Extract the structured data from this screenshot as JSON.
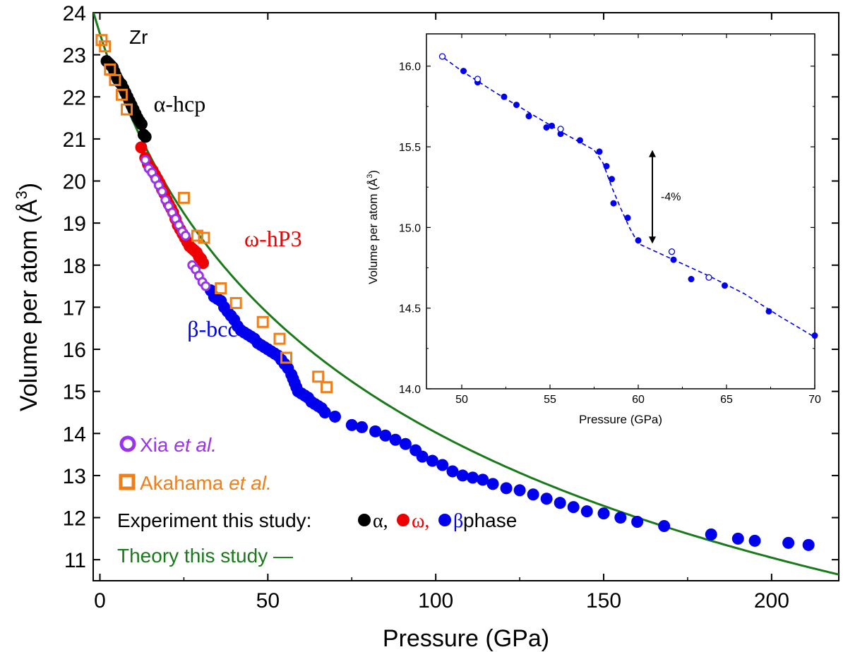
{
  "chart_data": {
    "main": {
      "type": "scatter",
      "xlabel": "Pressure (GPa)",
      "ylabel": "Volume per atom (Å3)",
      "ylabel_main": "Volume per atom (Å",
      "ylabel_sup": "3",
      "ylabel_close": ")",
      "xlim": [
        -2,
        220
      ],
      "ylim": [
        10.5,
        24
      ],
      "xticks": [
        0,
        50,
        100,
        150,
        200
      ],
      "yticks": [
        11,
        12,
        13,
        14,
        15,
        16,
        17,
        18,
        19,
        20,
        21,
        22,
        23,
        24
      ],
      "element_label": "Zr",
      "phase_labels": [
        {
          "text": "α-hcp",
          "color": "#000000",
          "x": 16,
          "y": 21.65
        },
        {
          "text": "ω-hP3",
          "color": "#ee0000",
          "x": 43,
          "y": 18.45
        },
        {
          "text": "β-bcc",
          "color": "#0000ee",
          "x": 26,
          "y": 16.3
        }
      ],
      "legend": {
        "xia_prefix": "Xia ",
        "xia_suffix": "et al.",
        "akahama_prefix": "Akahama ",
        "akahama_suffix": "et al.",
        "experiment_prefix": "Experiment this study:",
        "alpha": "α,",
        "omega": "ω,",
        "beta": "β",
        "phase_word": " phase",
        "theory": "Theory this study —"
      },
      "colors": {
        "alpha": "#000000",
        "omega": "#ee0000",
        "beta": "#0000ee",
        "xia": "#9933ee",
        "akahama": "#ee7f1a",
        "theory": "#1a7a1a"
      },
      "series": [
        {
          "name": "Theory this study",
          "kind": "line",
          "V0": 23.5,
          "K0": 93,
          "K0p": 3.0,
          "x_range": [
            -2,
            220
          ]
        },
        {
          "name": "α",
          "kind": "filled",
          "points": [
            [
              2,
              22.85
            ],
            [
              2.6,
              22.8
            ],
            [
              3.2,
              22.75
            ],
            [
              3.8,
              22.7
            ],
            [
              4.3,
              22.6
            ],
            [
              4.8,
              22.5
            ],
            [
              5.3,
              22.42
            ],
            [
              5.8,
              22.35
            ],
            [
              6.4,
              22.3
            ],
            [
              7,
              22.2
            ],
            [
              7.6,
              22.1
            ],
            [
              8.2,
              22.0
            ],
            [
              8.8,
              21.9
            ],
            [
              9.4,
              21.8
            ],
            [
              10,
              21.7
            ],
            [
              10.6,
              21.6
            ],
            [
              11.2,
              21.5
            ],
            [
              11.8,
              21.42
            ],
            [
              12.4,
              21.35
            ],
            [
              13,
              21.1
            ],
            [
              13.6,
              21.05
            ]
          ]
        },
        {
          "name": "ω",
          "kind": "filled",
          "points": [
            [
              12.3,
              20.8
            ],
            [
              13.5,
              20.55
            ],
            [
              14.3,
              20.4
            ],
            [
              15,
              20.3
            ],
            [
              15.7,
              20.25
            ],
            [
              16.4,
              20.15
            ],
            [
              17.1,
              20.05
            ],
            [
              17.8,
              19.95
            ],
            [
              18.5,
              19.8
            ],
            [
              19.2,
              19.7
            ],
            [
              19.9,
              19.55
            ],
            [
              20.5,
              19.45
            ],
            [
              21.2,
              19.35
            ],
            [
              21.8,
              19.25
            ],
            [
              22.5,
              19.1
            ],
            [
              23.2,
              18.95
            ],
            [
              23.9,
              18.85
            ],
            [
              24.6,
              18.75
            ],
            [
              25.3,
              18.65
            ],
            [
              26,
              18.55
            ],
            [
              26.7,
              18.45
            ],
            [
              27.4,
              18.4
            ],
            [
              28.1,
              18.35
            ],
            [
              28.8,
              18.3
            ],
            [
              29.5,
              18.2
            ],
            [
              30.1,
              18.15
            ],
            [
              30.7,
              18.05
            ]
          ]
        },
        {
          "name": "β",
          "kind": "filled",
          "points": [
            [
              33,
              17.4
            ],
            [
              34,
              17.25
            ],
            [
              35,
              17.2
            ],
            [
              36,
              17.15
            ],
            [
              37,
              17.0
            ],
            [
              38,
              16.9
            ],
            [
              39,
              16.8
            ],
            [
              40,
              16.7
            ],
            [
              41,
              16.55
            ],
            [
              42,
              16.45
            ],
            [
              43,
              16.4
            ],
            [
              44,
              16.35
            ],
            [
              45,
              16.3
            ],
            [
              46,
              16.25
            ],
            [
              47,
              16.15
            ],
            [
              48,
              16.1
            ],
            [
              49,
              16.05
            ],
            [
              50,
              16.0
            ],
            [
              51,
              15.95
            ],
            [
              52,
              15.9
            ],
            [
              53,
              15.85
            ],
            [
              54,
              15.75
            ],
            [
              55,
              15.65
            ],
            [
              56,
              15.55
            ],
            [
              57,
              15.4
            ],
            [
              57.5,
              15.3
            ],
            [
              58,
              15.2
            ],
            [
              58.5,
              15.1
            ],
            [
              59,
              15.0
            ],
            [
              60,
              14.95
            ],
            [
              61,
              14.9
            ],
            [
              62,
              14.85
            ],
            [
              63,
              14.75
            ],
            [
              64,
              14.7
            ],
            [
              65,
              14.65
            ],
            [
              66,
              14.6
            ],
            [
              67,
              14.5
            ],
            [
              70,
              14.4
            ],
            [
              75,
              14.2
            ],
            [
              78,
              14.15
            ],
            [
              82,
              14.05
            ],
            [
              85,
              13.95
            ],
            [
              88,
              13.85
            ],
            [
              91,
              13.75
            ],
            [
              94,
              13.6
            ],
            [
              96,
              13.45
            ],
            [
              99,
              13.35
            ],
            [
              102,
              13.25
            ],
            [
              105,
              13.1
            ],
            [
              108,
              13.0
            ],
            [
              111,
              12.95
            ],
            [
              114,
              12.9
            ],
            [
              117,
              12.8
            ],
            [
              121,
              12.7
            ],
            [
              125,
              12.65
            ],
            [
              129,
              12.55
            ],
            [
              133,
              12.45
            ],
            [
              137,
              12.35
            ],
            [
              141,
              12.25
            ],
            [
              145,
              12.15
            ],
            [
              150,
              12.1
            ],
            [
              155,
              12.0
            ],
            [
              160,
              11.9
            ],
            [
              168,
              11.8
            ],
            [
              182,
              11.6
            ],
            [
              190,
              11.5
            ],
            [
              195,
              11.45
            ],
            [
              205,
              11.4
            ],
            [
              211,
              11.35
            ]
          ]
        },
        {
          "name": "Xia et al.",
          "kind": "open-circle",
          "points": [
            [
              13.5,
              20.5
            ],
            [
              14.5,
              20.3
            ],
            [
              15.5,
              20.2
            ],
            [
              16.5,
              20.05
            ],
            [
              17.5,
              19.9
            ],
            [
              18.5,
              19.75
            ],
            [
              19.5,
              19.55
            ],
            [
              20.5,
              19.4
            ],
            [
              21.5,
              19.25
            ],
            [
              22.5,
              19.1
            ],
            [
              23.5,
              18.95
            ],
            [
              24.5,
              18.8
            ],
            [
              25.5,
              18.7
            ],
            [
              27.5,
              18.0
            ],
            [
              28.5,
              17.9
            ],
            [
              29.5,
              17.75
            ],
            [
              30.5,
              17.6
            ],
            [
              31.5,
              17.5
            ]
          ]
        },
        {
          "name": "Akahama et al.",
          "kind": "open-square",
          "points": [
            [
              0.5,
              23.35
            ],
            [
              1.5,
              23.2
            ],
            [
              3,
              22.65
            ],
            [
              4.5,
              22.4
            ],
            [
              6.5,
              22.05
            ],
            [
              8,
              21.7
            ],
            [
              25,
              19.6
            ],
            [
              29,
              18.7
            ],
            [
              31,
              18.65
            ],
            [
              36,
              17.45
            ],
            [
              40.5,
              17.1
            ],
            [
              48.5,
              16.65
            ],
            [
              53.5,
              16.25
            ],
            [
              55.5,
              15.8
            ],
            [
              65,
              15.35
            ],
            [
              67.5,
              15.1
            ]
          ]
        }
      ]
    },
    "inset": {
      "type": "scatter",
      "xlabel": "Pressure (GPa)",
      "ylabel": "Volume per atom (Å3)",
      "ylabel_main": "Volume per atom (Å",
      "ylabel_sup": "3",
      "ylabel_close": ")",
      "xlim": [
        48,
        70
      ],
      "ylim": [
        14.0,
        16.2
      ],
      "xticks": [
        50,
        55,
        60,
        65,
        70
      ],
      "yticks": [
        14.0,
        14.5,
        15.0,
        15.5,
        16.0
      ],
      "annotation": "-4%",
      "arrow": {
        "x": 60.8,
        "y_top": 15.48,
        "y_bottom": 14.9
      },
      "colors": {
        "points": "#0000ee",
        "dash": "#0000ee"
      },
      "series": [
        {
          "name": "filled",
          "kind": "filled",
          "points": [
            [
              50.1,
              15.97
            ],
            [
              50.9,
              15.9
            ],
            [
              52.4,
              15.81
            ],
            [
              53.1,
              15.76
            ],
            [
              53.8,
              15.69
            ],
            [
              54.8,
              15.62
            ],
            [
              55.1,
              15.63
            ],
            [
              55.6,
              15.58
            ],
            [
              56.7,
              15.54
            ],
            [
              57.8,
              15.47
            ],
            [
              58.2,
              15.38
            ],
            [
              58.5,
              15.3
            ],
            [
              58.6,
              15.15
            ],
            [
              59.4,
              15.06
            ],
            [
              60.0,
              14.92
            ],
            [
              62.0,
              14.8
            ],
            [
              63.0,
              14.68
            ],
            [
              64.9,
              14.64
            ],
            [
              67.4,
              14.48
            ],
            [
              70.0,
              14.33
            ]
          ]
        },
        {
          "name": "open",
          "kind": "open-circle",
          "points": [
            [
              48.9,
              16.06
            ],
            [
              50.9,
              15.92
            ],
            [
              55.6,
              15.61
            ],
            [
              61.9,
              14.85
            ],
            [
              64.0,
              14.69
            ]
          ]
        },
        {
          "name": "fit",
          "kind": "dashed-line",
          "points": [
            [
              49,
              16.05
            ],
            [
              50,
              15.97
            ],
            [
              52,
              15.83
            ],
            [
              54,
              15.7
            ],
            [
              56,
              15.57
            ],
            [
              57.5,
              15.48
            ],
            [
              58,
              15.4
            ],
            [
              58.5,
              15.25
            ],
            [
              59,
              15.12
            ],
            [
              59.5,
              15.0
            ],
            [
              60,
              14.9
            ],
            [
              62,
              14.8
            ],
            [
              64,
              14.7
            ],
            [
              66,
              14.59
            ],
            [
              68,
              14.45
            ],
            [
              70,
              14.32
            ]
          ]
        }
      ]
    }
  }
}
